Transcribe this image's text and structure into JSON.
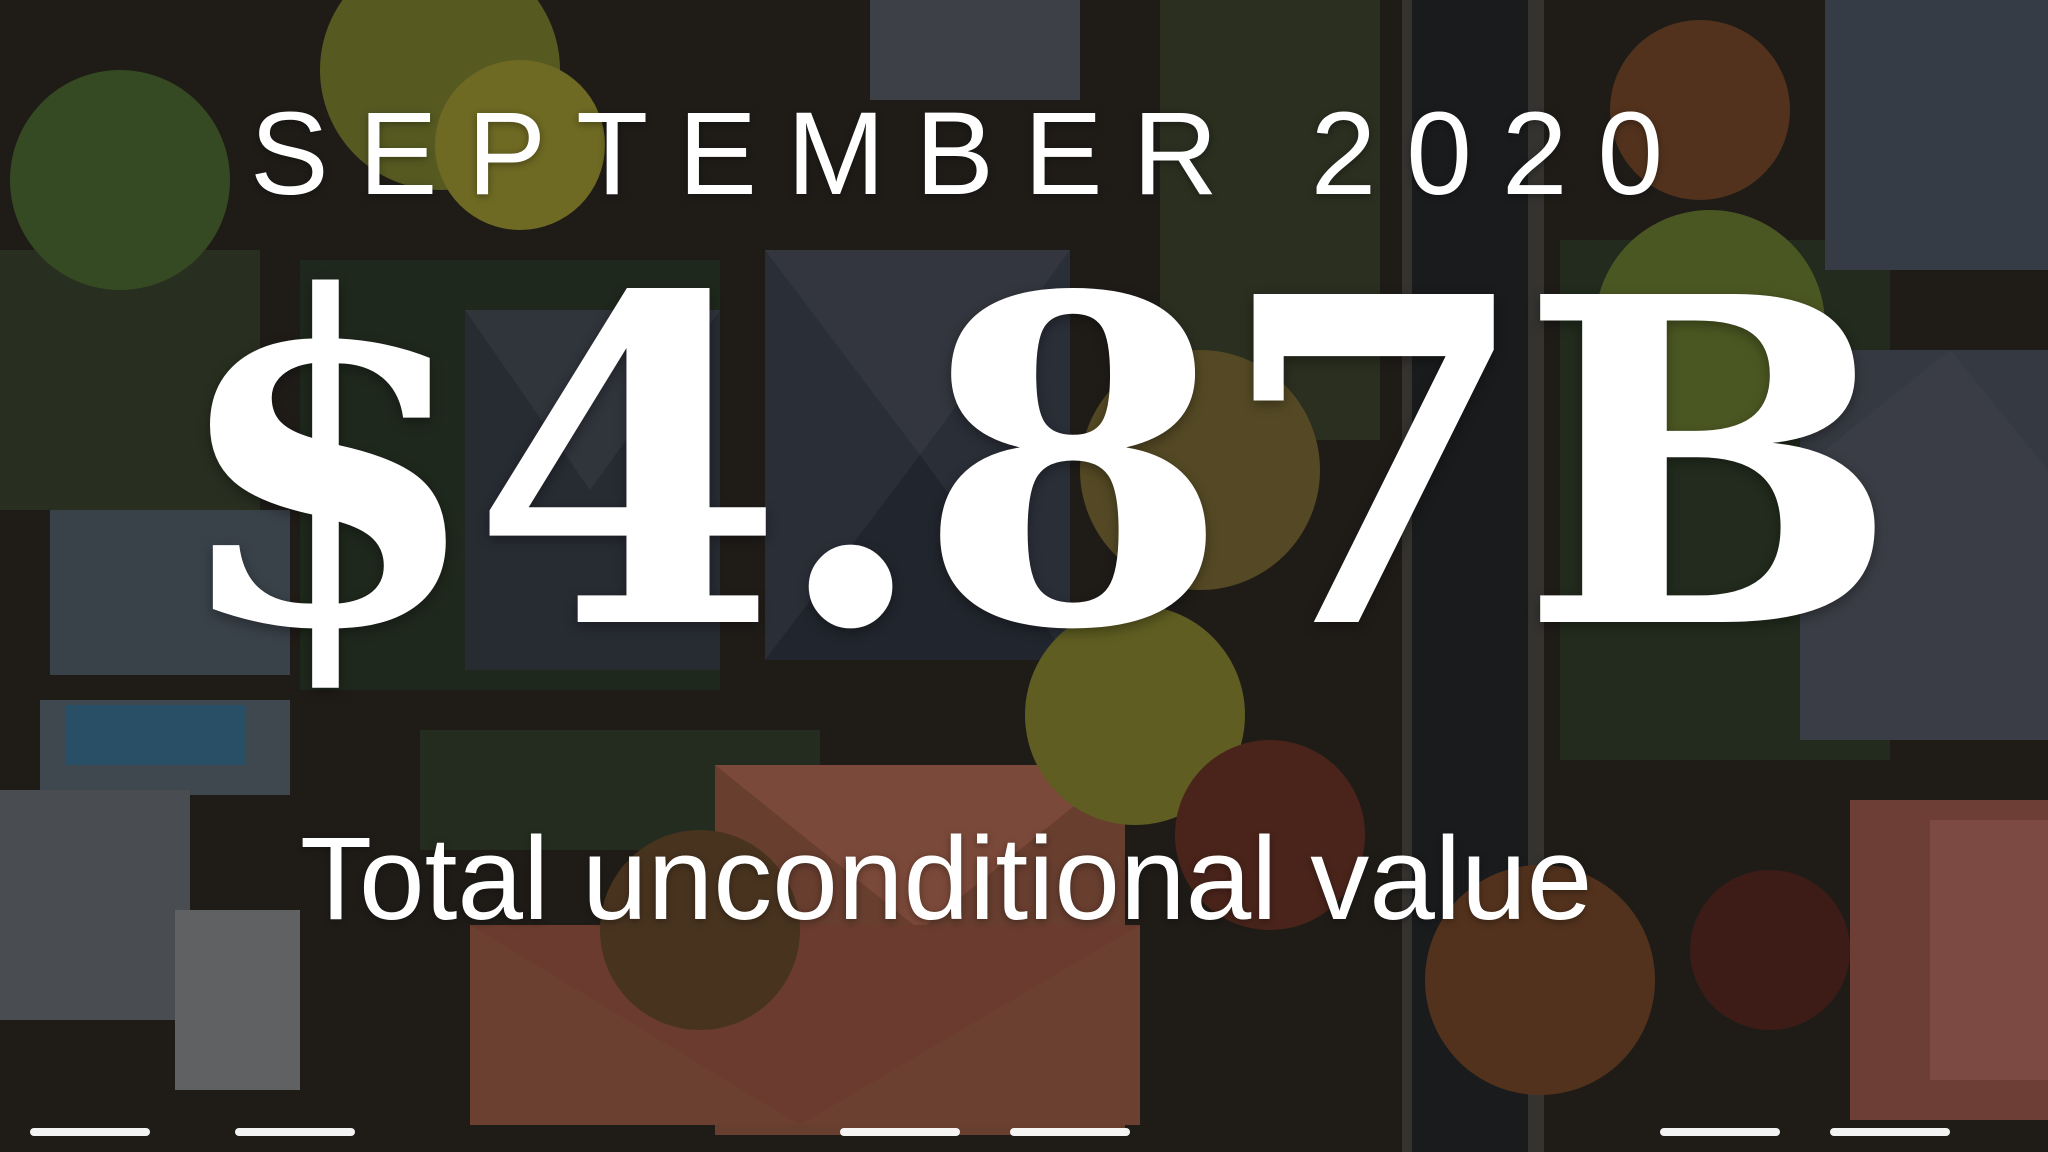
{
  "hero": {
    "date_text": "SEPTEMBER 2020",
    "value_text": "$4.87B",
    "caption_text": "Total unconditional value"
  }
}
